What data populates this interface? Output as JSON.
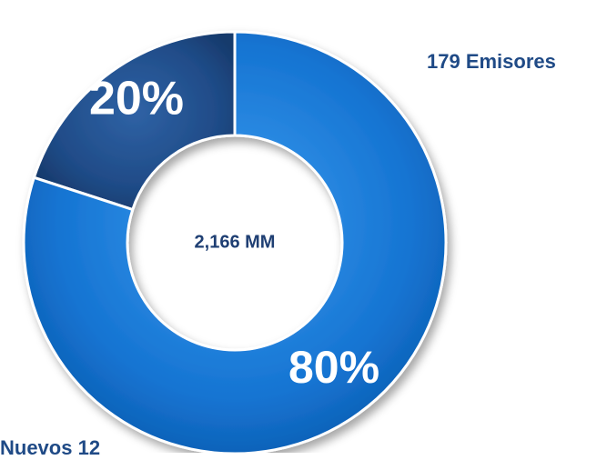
{
  "chart_data": {
    "type": "pie",
    "donut": true,
    "categories": [
      "Nuevos 12",
      "179 Emisores"
    ],
    "values": [
      20,
      80
    ],
    "value_labels": [
      "20%",
      "80%"
    ],
    "center_label": "2,166 MM",
    "legend": {
      "emisores": "179 Emisores",
      "nuevos": "Nuevos 12"
    },
    "colors": {
      "dark_slice": "#1e4b88",
      "light_slice": "#1277d4",
      "center_text": "#1f3f73",
      "legend_text": "#1f4a86"
    }
  }
}
